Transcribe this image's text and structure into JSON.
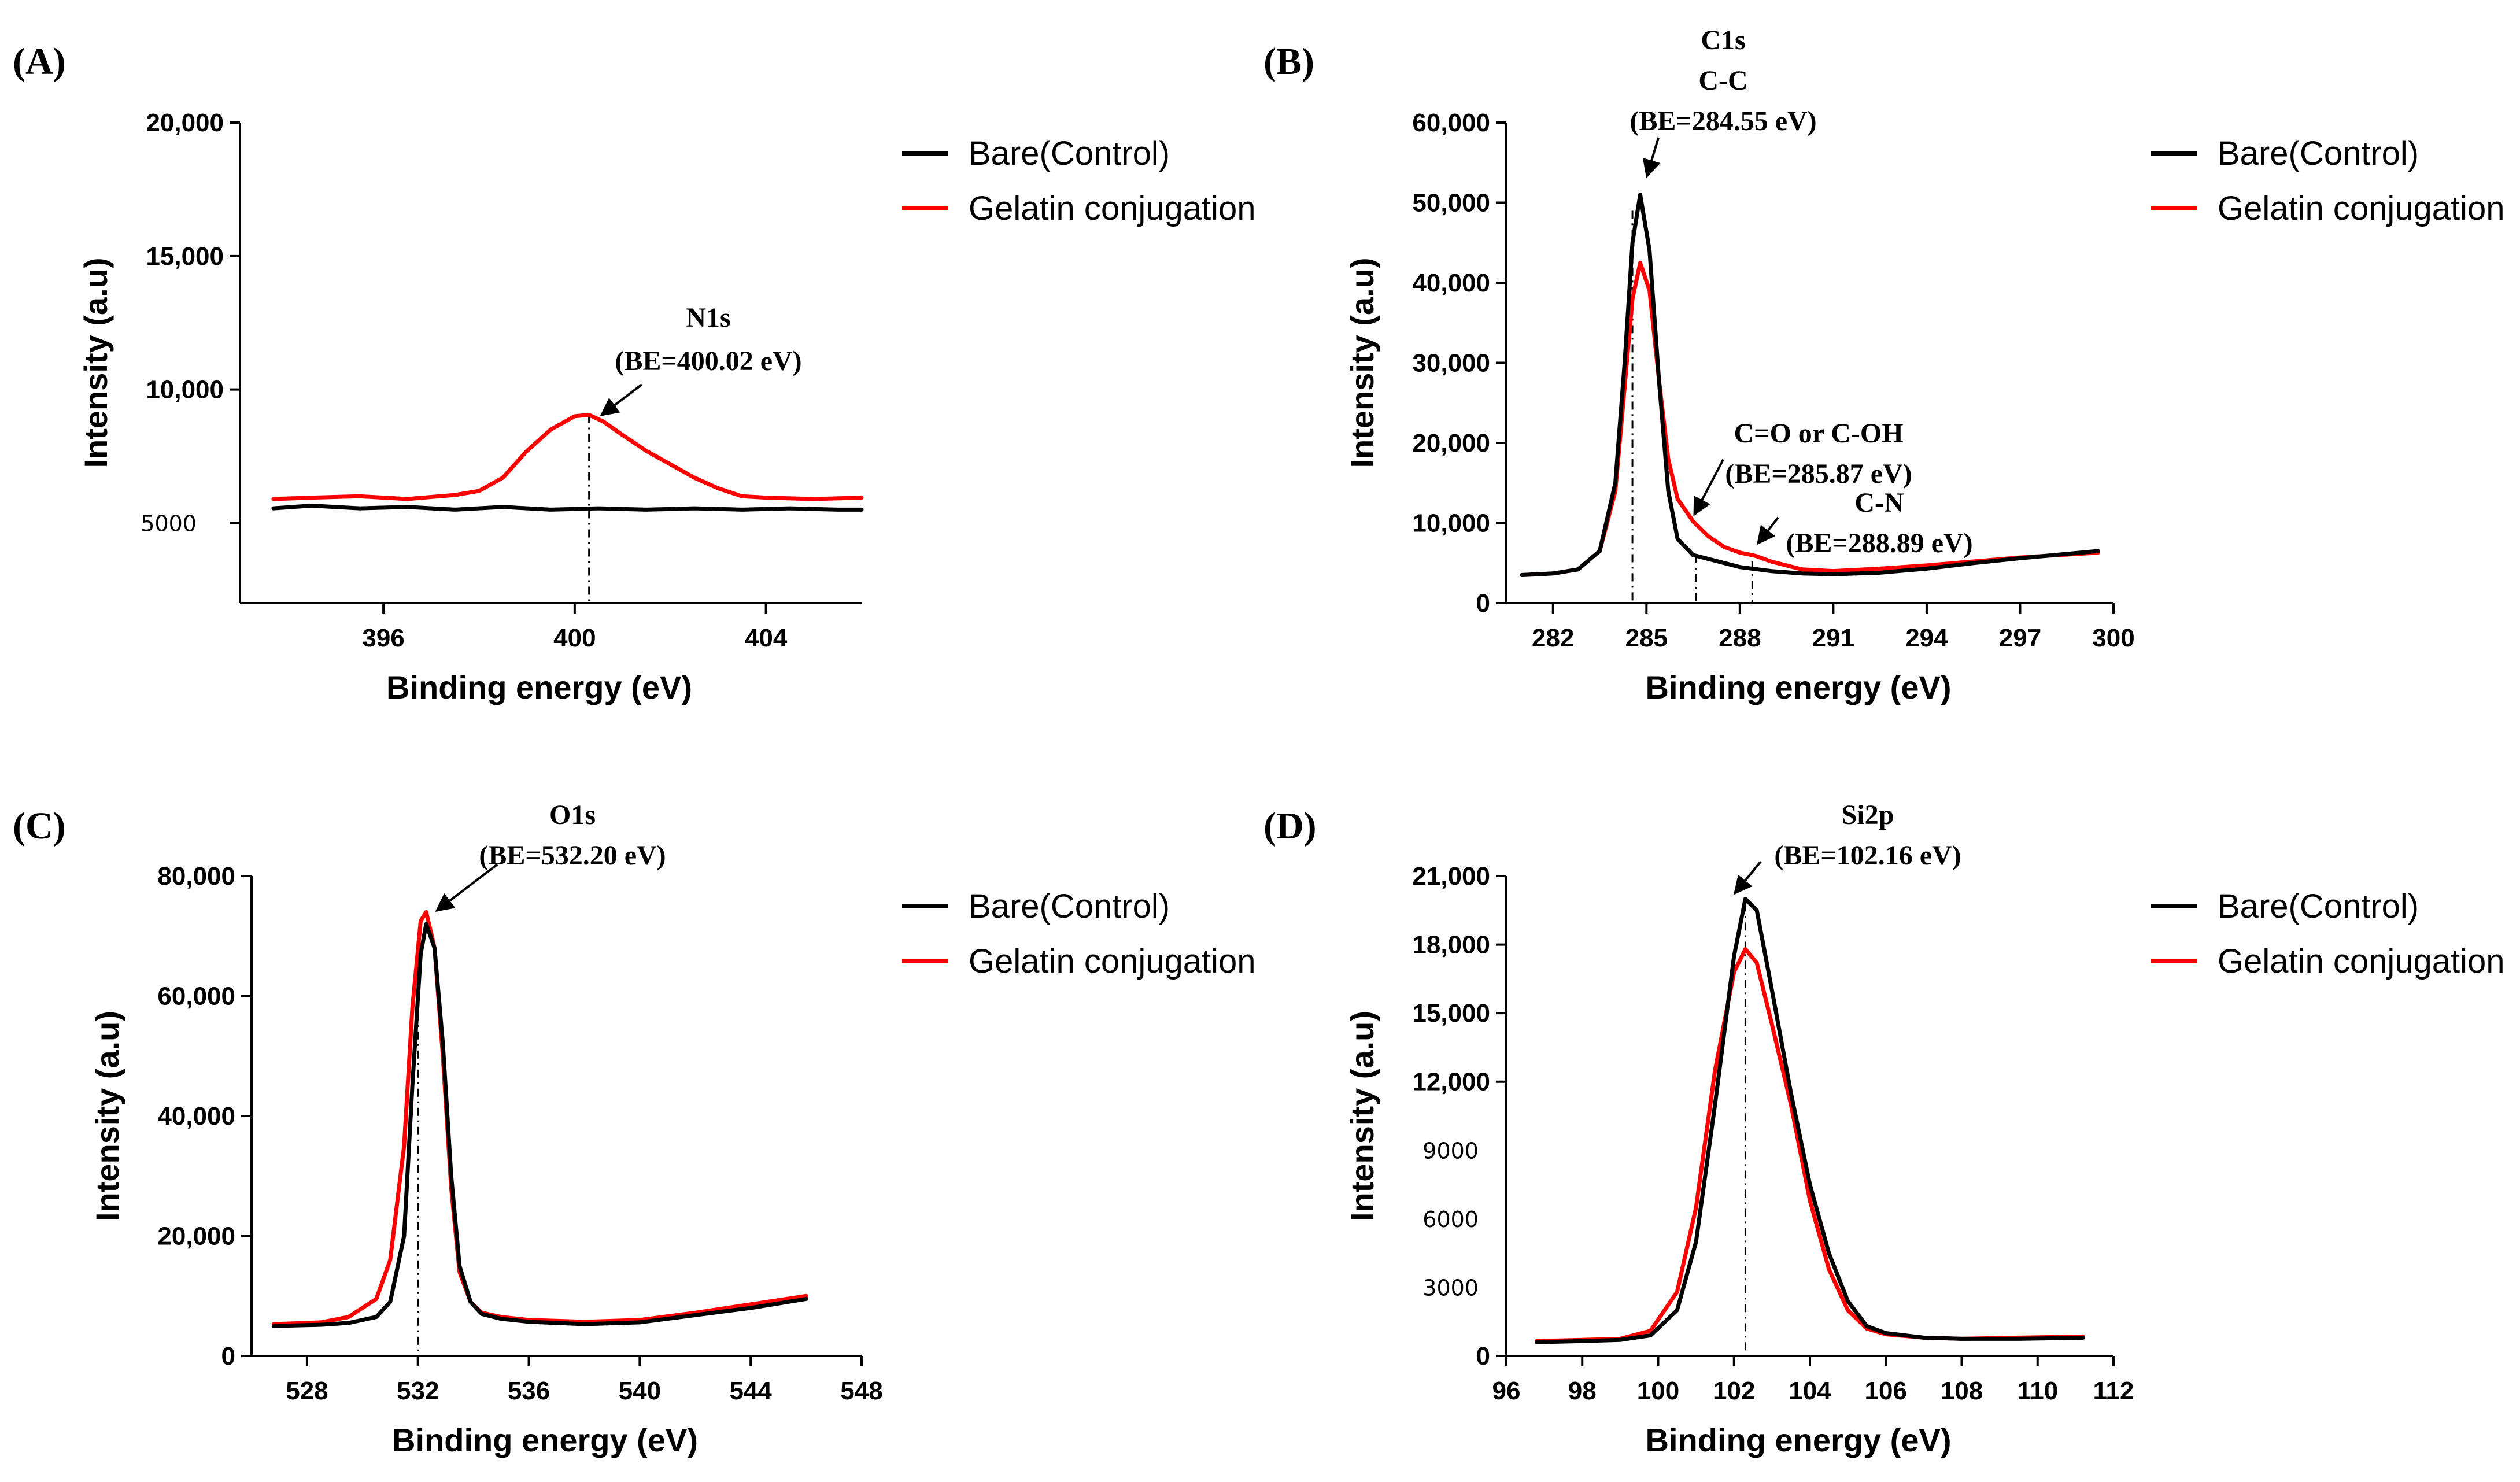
{
  "colors": {
    "bare": "#000000",
    "gelatin": "#ff0000"
  },
  "legend": [
    {
      "name": "Bare(Control)",
      "color": "#000000"
    },
    {
      "name": "Gelatin conjugation",
      "color": "#ff0000"
    }
  ],
  "chart_data": [
    {
      "panel": "(A)",
      "type": "line",
      "xlabel": "Binding energy (eV)",
      "ylabel": "Intensity (a.u)",
      "xlim": [
        393,
        406
      ],
      "ylim": [
        2000,
        20000
      ],
      "xticks": [
        396,
        400,
        404
      ],
      "xtick_labels": [
        "396",
        "400",
        "404"
      ],
      "yticks": [
        10000,
        15000,
        20000
      ],
      "ytick_labels": [
        "10,000",
        "15,000",
        "20,000"
      ],
      "extra_ytick": {
        "value": 5000,
        "label": "5000"
      },
      "series": [
        {
          "name": "Bare(Control)",
          "x": [
            393.7,
            394.5,
            395.5,
            396.5,
            397.5,
            398.5,
            399.5,
            400.5,
            401.5,
            402.5,
            403.5,
            404.5,
            405.5,
            406
          ],
          "values": [
            5550,
            5650,
            5550,
            5600,
            5500,
            5600,
            5500,
            5550,
            5500,
            5550,
            5500,
            5550,
            5500,
            5500
          ]
        },
        {
          "name": "Gelatin conjugation",
          "x": [
            393.7,
            394.5,
            395.5,
            396.5,
            397.5,
            398.0,
            398.5,
            399.0,
            399.5,
            400.0,
            400.3,
            400.6,
            401.0,
            401.5,
            402.0,
            402.5,
            403.0,
            403.5,
            404.0,
            405.0,
            406
          ],
          "values": [
            5900,
            5950,
            6000,
            5900,
            6050,
            6200,
            6700,
            7700,
            8500,
            9000,
            9050,
            8800,
            8300,
            7700,
            7200,
            6700,
            6300,
            6000,
            5950,
            5900,
            5950
          ]
        }
      ],
      "annotations": [
        {
          "lines": [
            "N1s",
            "(BE=400.02 eV)"
          ],
          "x": 400.3,
          "y": 9050
        }
      ],
      "guide_lines": [
        {
          "x": 400.3,
          "y_top": 9050
        }
      ]
    },
    {
      "panel": "(B)",
      "type": "line",
      "xlabel": "Binding energy (eV)",
      "ylabel": "Intensity (a.u)",
      "xlim": [
        280.5,
        300
      ],
      "ylim": [
        0,
        60000
      ],
      "xticks": [
        282,
        285,
        288,
        291,
        294,
        297,
        300
      ],
      "xtick_labels": [
        "282",
        "285",
        "288",
        "291",
        "294",
        "297",
        "300"
      ],
      "yticks": [
        0,
        10000,
        20000,
        30000,
        40000,
        50000,
        60000
      ],
      "ytick_labels": [
        "0",
        "10,000",
        "20,000",
        "30,000",
        "40,000",
        "50,000",
        "60,000"
      ],
      "series": [
        {
          "name": "Bare(Control)",
          "x": [
            281,
            282,
            282.8,
            283.5,
            284.0,
            284.3,
            284.55,
            284.8,
            285.1,
            285.4,
            285.7,
            286.0,
            286.5,
            287.0,
            287.5,
            288.0,
            289.0,
            290.0,
            291.0,
            292.5,
            294.0,
            295.5,
            297.0,
            299.5
          ],
          "values": [
            3500,
            3700,
            4200,
            6500,
            15000,
            30000,
            45000,
            51000,
            44000,
            28000,
            14000,
            8000,
            6000,
            5500,
            5000,
            4500,
            4000,
            3700,
            3600,
            3800,
            4300,
            5000,
            5600,
            6500
          ]
        },
        {
          "name": "Gelatin conjugation",
          "x": [
            281,
            282,
            282.8,
            283.5,
            284.0,
            284.3,
            284.55,
            284.8,
            285.1,
            285.4,
            285.7,
            286.0,
            286.5,
            287.0,
            287.5,
            288.0,
            288.5,
            289.0,
            290.0,
            291.0,
            292.5,
            294.0,
            295.5,
            297.0,
            299.5
          ],
          "values": [
            3500,
            3700,
            4200,
            6500,
            14000,
            27000,
            38000,
            42500,
            39000,
            28000,
            18000,
            13000,
            10200,
            8300,
            7000,
            6300,
            5900,
            5200,
            4200,
            4000,
            4300,
            4700,
            5200,
            5700,
            6300
          ]
        }
      ],
      "annotations": [
        {
          "lines": [
            "C1s",
            "C-C",
            "(BE=284.55 eV)"
          ],
          "x": 284.55,
          "y": 51000
        },
        {
          "lines": [
            "C=O or C-OH",
            "(BE=285.87 eV)"
          ],
          "x": 286.6,
          "y": 10200
        },
        {
          "lines": [
            "C-N",
            "(BE=288.89 eV)"
          ],
          "x": 288.4,
          "y": 5900
        }
      ],
      "guide_lines": [
        {
          "x": 284.55,
          "y_top": 49000
        },
        {
          "x": 286.6,
          "y_top": 6000
        },
        {
          "x": 288.4,
          "y_top": 5200
        }
      ]
    },
    {
      "panel": "(C)",
      "type": "line",
      "xlabel": "Binding energy (eV)",
      "ylabel": "Intensity (a.u)",
      "xlim": [
        526,
        548
      ],
      "ylim": [
        0,
        80000
      ],
      "xticks": [
        528,
        532,
        536,
        540,
        544,
        548
      ],
      "xtick_labels": [
        "528",
        "532",
        "536",
        "540",
        "544",
        "548"
      ],
      "yticks": [
        0,
        20000,
        40000,
        60000,
        80000
      ],
      "ytick_labels": [
        "0",
        "20,000",
        "40,000",
        "60,000",
        "80,000"
      ],
      "series": [
        {
          "name": "Bare(Control)",
          "x": [
            526.8,
            528.5,
            529.5,
            530.5,
            531.0,
            531.5,
            531.8,
            532.1,
            532.3,
            532.6,
            532.9,
            533.2,
            533.5,
            533.9,
            534.3,
            535.0,
            536.0,
            538.0,
            540.0,
            542.0,
            544.0,
            546.0
          ],
          "values": [
            5000,
            5200,
            5500,
            6500,
            9000,
            20000,
            45000,
            67000,
            72000,
            68000,
            52000,
            30000,
            15000,
            9000,
            7000,
            6200,
            5700,
            5300,
            5600,
            6800,
            8000,
            9500
          ]
        },
        {
          "name": "Gelatin conjugation",
          "x": [
            526.8,
            528.5,
            529.5,
            530.5,
            531.0,
            531.5,
            531.8,
            532.1,
            532.3,
            532.6,
            532.9,
            533.2,
            533.5,
            533.9,
            534.3,
            535.0,
            536.0,
            538.0,
            540.0,
            542.0,
            544.0,
            546.0
          ],
          "values": [
            5300,
            5600,
            6500,
            9500,
            16000,
            35000,
            58000,
            72500,
            74000,
            68000,
            50000,
            28000,
            14000,
            9000,
            7200,
            6500,
            6000,
            5700,
            6000,
            7200,
            8600,
            10000
          ]
        }
      ],
      "annotations": [
        {
          "lines": [
            "O1s",
            "(BE=532.20 eV)"
          ],
          "x": 532.3,
          "y": 74000
        }
      ],
      "guide_lines": [
        {
          "x": 532.0,
          "y_top": 70000
        }
      ]
    },
    {
      "panel": "(D)",
      "type": "line",
      "xlabel": "Binding energy (eV)",
      "ylabel": "Intensity (a.u)",
      "xlim": [
        96,
        112
      ],
      "ylim": [
        0,
        21000
      ],
      "xticks": [
        96,
        98,
        100,
        102,
        104,
        106,
        108,
        110,
        112
      ],
      "xtick_labels": [
        "96",
        "98",
        "100",
        "102",
        "104",
        "106",
        "108",
        "110",
        "112"
      ],
      "yticks": [
        0,
        12000,
        15000,
        18000,
        21000
      ],
      "ytick_labels": [
        "0",
        "12,000",
        "15,000",
        "18,000",
        "21,000"
      ],
      "extra_yticks": [
        {
          "value": 9000,
          "label": "9000"
        },
        {
          "value": 6000,
          "label": "6000"
        },
        {
          "value": 3000,
          "label": "3000"
        }
      ],
      "series": [
        {
          "name": "Bare(Control)",
          "x": [
            96.8,
            98.0,
            99.0,
            99.8,
            100.5,
            101.0,
            101.5,
            102.0,
            102.3,
            102.6,
            103.0,
            103.5,
            104.0,
            104.5,
            105.0,
            105.5,
            106.0,
            107.0,
            108.0,
            109.5,
            111.2
          ],
          "values": [
            600,
            650,
            700,
            900,
            2000,
            5000,
            11000,
            17500,
            20000,
            19500,
            16000,
            11500,
            7500,
            4500,
            2400,
            1300,
            1000,
            800,
            750,
            750,
            800
          ]
        },
        {
          "name": "Gelatin conjugation",
          "x": [
            96.8,
            98.0,
            99.0,
            99.8,
            100.5,
            101.0,
            101.5,
            102.0,
            102.3,
            102.6,
            103.0,
            103.5,
            104.0,
            104.5,
            105.0,
            105.5,
            106.0,
            107.0,
            108.0,
            109.5,
            111.2
          ],
          "values": [
            650,
            700,
            750,
            1100,
            2800,
            6500,
            12500,
            16800,
            17800,
            17200,
            14500,
            11000,
            6800,
            3800,
            2000,
            1200,
            950,
            800,
            750,
            800,
            850
          ]
        }
      ],
      "annotations": [
        {
          "lines": [
            "Si2p",
            "(BE=102.16 eV)"
          ],
          "x": 102.3,
          "y": 20000
        }
      ],
      "guide_lines": [
        {
          "x": 102.3,
          "y_top": 19800
        }
      ]
    }
  ]
}
